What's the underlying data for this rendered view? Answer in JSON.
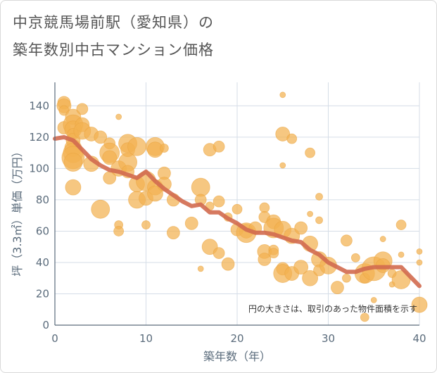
{
  "chart_data": {
    "type": "scatter",
    "title_line1": "中京競馬場前駅（愛知県）の",
    "title_line2": "築年数別中古マンション価格",
    "xlabel": "築年数（年）",
    "ylabel": "坪（3.3㎡）単価（万円）",
    "note": "円の大きさは、取引のあった物件面積を示す",
    "xlim": [
      0,
      40
    ],
    "ylim": [
      0,
      155
    ],
    "xticks": [
      0,
      10,
      20,
      30,
      40
    ],
    "yticks": [
      0,
      20,
      40,
      60,
      80,
      100,
      120,
      140
    ],
    "grid": true,
    "colors": {
      "bubble": "#f2b250",
      "trend": "#d26a4f",
      "grid": "#d5dde7",
      "axis": "#5a6b7b"
    },
    "series": [
      {
        "type": "bubble",
        "points": [
          [
            1,
            142,
            9
          ],
          [
            1,
            140,
            10
          ],
          [
            1,
            137,
            7
          ],
          [
            1,
            126,
            9
          ],
          [
            2,
            133,
            11
          ],
          [
            2,
            128,
            14
          ],
          [
            2,
            125,
            12
          ],
          [
            2,
            122,
            8
          ],
          [
            2,
            118,
            10
          ],
          [
            2,
            113,
            12
          ],
          [
            2,
            110,
            14
          ],
          [
            2,
            107,
            16
          ],
          [
            2,
            104,
            13
          ],
          [
            2,
            88,
            11
          ],
          [
            3,
            138,
            8
          ],
          [
            3,
            128,
            10
          ],
          [
            3,
            124,
            12
          ],
          [
            4,
            122,
            10
          ],
          [
            4,
            103,
            11
          ],
          [
            5,
            120,
            9
          ],
          [
            5,
            74,
            13
          ],
          [
            6,
            116,
            8
          ],
          [
            6,
            110,
            14
          ],
          [
            6,
            107,
            10
          ],
          [
            6,
            94,
            9
          ],
          [
            7,
            133,
            4
          ],
          [
            7,
            100,
            11
          ],
          [
            7,
            64,
            6
          ],
          [
            7,
            60,
            7
          ],
          [
            8,
            116,
            13
          ],
          [
            8,
            112,
            10
          ],
          [
            8,
            104,
            13
          ],
          [
            8,
            98,
            9
          ],
          [
            9,
            114,
            13
          ],
          [
            9,
            80,
            12
          ],
          [
            9,
            90,
            11
          ],
          [
            10,
            92,
            14
          ],
          [
            10,
            81,
            10
          ],
          [
            10,
            64,
            6
          ],
          [
            11,
            114,
            13
          ],
          [
            11,
            112,
            11
          ],
          [
            11,
            88,
            11
          ],
          [
            11,
            84,
            11
          ],
          [
            12,
            113,
            6
          ],
          [
            12,
            97,
            9
          ],
          [
            12,
            90,
            10
          ],
          [
            13,
            80,
            9
          ],
          [
            13,
            59,
            9
          ],
          [
            15,
            65,
            9
          ],
          [
            16,
            88,
            13
          ],
          [
            16,
            80,
            8
          ],
          [
            16,
            36,
            4
          ],
          [
            17,
            112,
            9
          ],
          [
            17,
            50,
            11
          ],
          [
            17,
            76,
            6
          ],
          [
            18,
            114,
            8
          ],
          [
            18,
            79,
            8
          ],
          [
            18,
            46,
            8
          ],
          [
            19,
            39,
            9
          ],
          [
            19,
            69,
            6
          ],
          [
            20,
            74,
            7
          ],
          [
            20,
            61,
            9
          ],
          [
            21,
            60,
            10
          ],
          [
            21,
            59,
            14
          ],
          [
            22,
            62,
            9
          ],
          [
            23,
            75,
            7
          ],
          [
            23,
            69,
            8
          ],
          [
            23,
            47,
            10
          ],
          [
            23,
            42,
            9
          ],
          [
            24,
            66,
            10
          ],
          [
            24,
            62,
            14
          ],
          [
            24,
            48,
            7
          ],
          [
            24,
            46,
            7
          ],
          [
            25,
            147,
            4
          ],
          [
            25,
            122,
            10
          ],
          [
            25,
            102,
            4
          ],
          [
            25,
            61,
            12
          ],
          [
            25,
            36,
            9
          ],
          [
            25,
            33,
            13
          ],
          [
            26,
            119,
            7
          ],
          [
            26,
            57,
            11
          ],
          [
            26,
            33,
            10
          ],
          [
            27,
            62,
            9
          ],
          [
            27,
            37,
            10
          ],
          [
            28,
            110,
            7
          ],
          [
            28,
            71,
            4
          ],
          [
            28,
            52,
            11
          ],
          [
            28,
            30,
            11
          ],
          [
            29,
            82,
            5
          ],
          [
            29,
            67,
            5
          ],
          [
            29,
            42,
            11
          ],
          [
            29,
            35,
            8
          ],
          [
            30,
            38,
            12
          ],
          [
            31,
            24,
            9
          ],
          [
            32,
            54,
            8
          ],
          [
            32,
            30,
            6
          ],
          [
            33,
            43,
            6
          ],
          [
            34,
            33,
            14
          ],
          [
            34,
            30,
            7
          ],
          [
            34,
            5,
            6
          ],
          [
            35,
            36,
            17
          ],
          [
            35,
            16,
            4
          ],
          [
            36,
            55,
            4
          ],
          [
            36,
            41,
            13
          ],
          [
            36,
            38,
            10
          ],
          [
            37,
            33,
            6
          ],
          [
            37,
            26,
            4
          ],
          [
            38,
            64,
            7
          ],
          [
            38,
            45,
            4
          ],
          [
            38,
            29,
            13
          ],
          [
            40,
            47,
            4
          ],
          [
            40,
            40,
            4
          ],
          [
            40,
            13,
            11
          ]
        ]
      },
      {
        "type": "line",
        "points": [
          [
            0,
            119
          ],
          [
            1,
            120
          ],
          [
            2,
            118
          ],
          [
            3,
            112
          ],
          [
            4,
            106
          ],
          [
            5,
            102
          ],
          [
            6,
            99
          ],
          [
            7,
            98
          ],
          [
            8,
            96
          ],
          [
            9,
            94
          ],
          [
            10,
            98
          ],
          [
            11,
            92
          ],
          [
            12,
            87
          ],
          [
            13,
            83
          ],
          [
            14,
            79
          ],
          [
            15,
            76
          ],
          [
            16,
            77
          ],
          [
            17,
            72
          ],
          [
            18,
            72
          ],
          [
            19,
            68
          ],
          [
            20,
            65
          ],
          [
            21,
            61
          ],
          [
            22,
            59
          ],
          [
            23,
            59
          ],
          [
            24,
            58
          ],
          [
            25,
            56
          ],
          [
            26,
            54
          ],
          [
            27,
            53
          ],
          [
            28,
            48
          ],
          [
            29,
            45
          ],
          [
            30,
            40
          ],
          [
            31,
            37
          ],
          [
            32,
            34
          ],
          [
            33,
            34
          ],
          [
            34,
            36
          ],
          [
            35,
            37
          ],
          [
            36,
            37
          ],
          [
            37,
            37
          ],
          [
            38,
            37
          ],
          [
            39,
            31
          ],
          [
            40,
            25
          ]
        ]
      }
    ]
  }
}
